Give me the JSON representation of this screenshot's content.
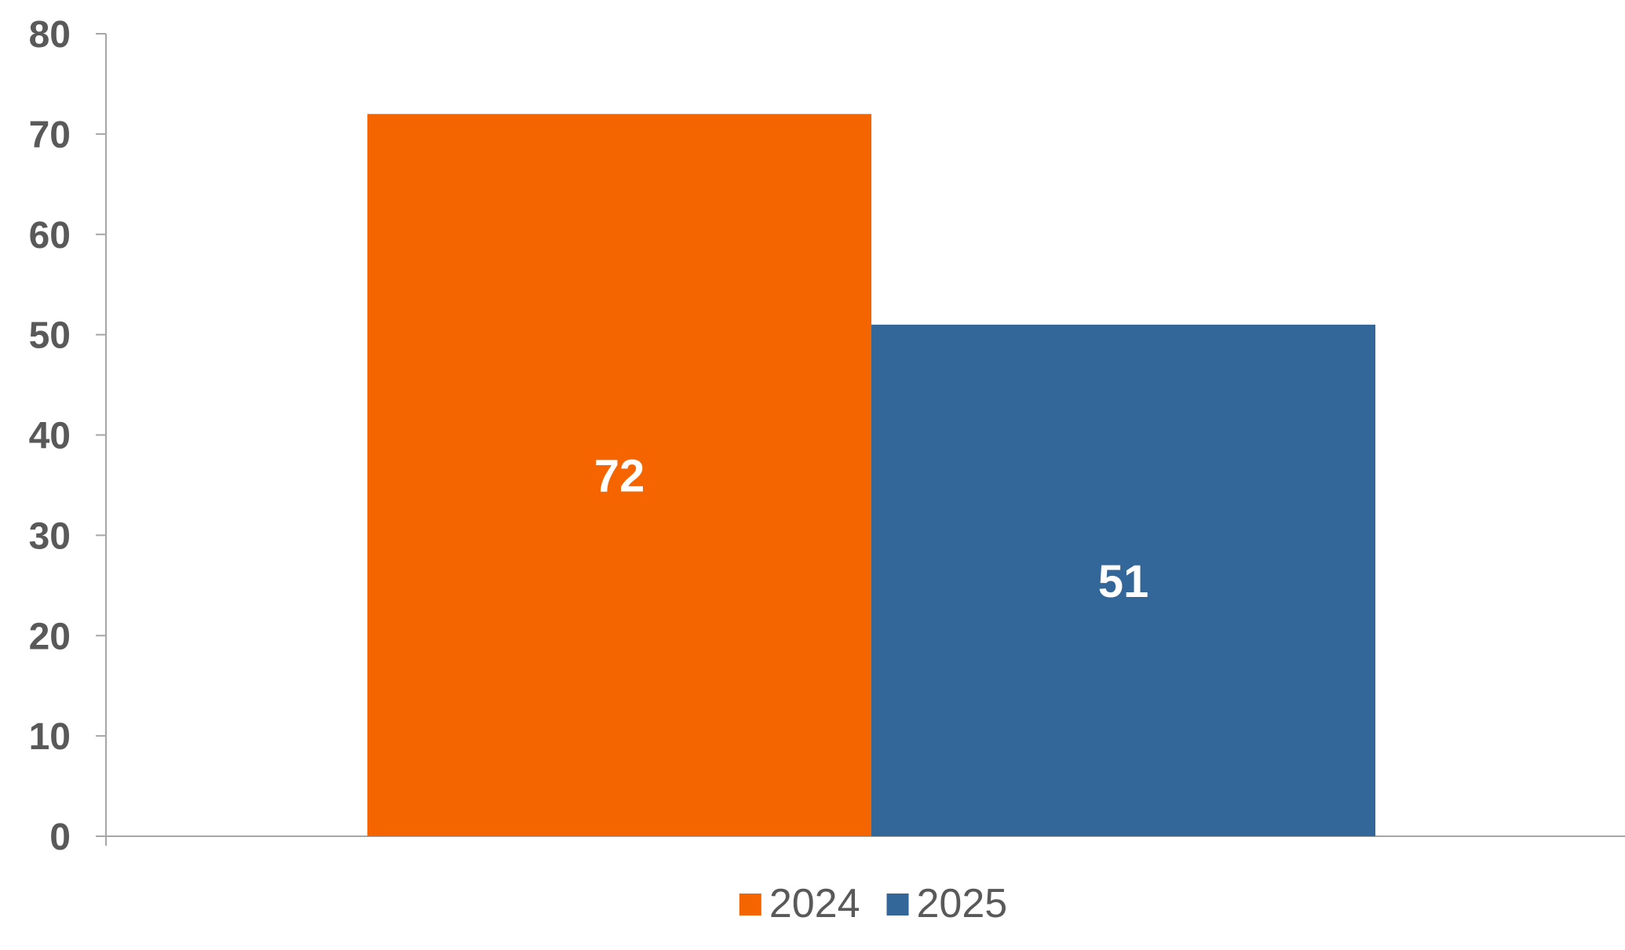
{
  "chart_data": {
    "type": "bar",
    "categories": [
      ""
    ],
    "series": [
      {
        "name": "2024",
        "values": [
          72
        ],
        "color": "#F46500"
      },
      {
        "name": "2025",
        "values": [
          51
        ],
        "color": "#336699"
      }
    ],
    "title": "",
    "xlabel": "",
    "ylabel": "",
    "ylim": [
      0,
      80
    ],
    "yticks": [
      0,
      10,
      20,
      30,
      40,
      50,
      60,
      70,
      80
    ],
    "grid": false,
    "legend_position": "bottom",
    "data_labels": true,
    "axis_color": "#A6A6A6"
  }
}
